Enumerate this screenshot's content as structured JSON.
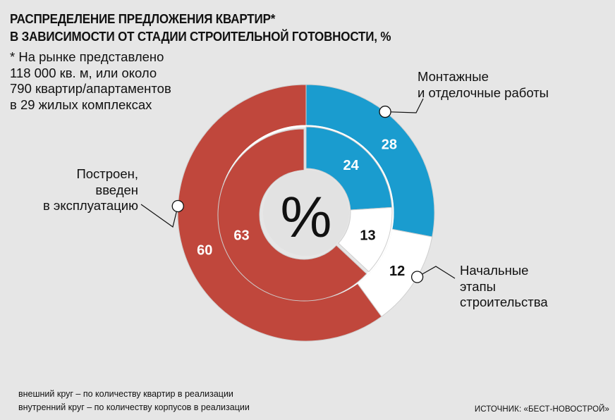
{
  "header": {
    "title_lines": [
      "РАСПРЕДЕЛЕНИЕ ПРЕДЛОЖЕНИЯ КВАРТИР*",
      "В ЗАВИСИМОСТИ ОТ СТАДИИ СТРОИТЕЛЬНОЙ ГОТОВНОСТИ, %"
    ],
    "note_lines": [
      "* На рынке представлено",
      "118 000 кв. м, или около",
      "790 квартир/апартаментов",
      "в 29 жилых комплексах"
    ]
  },
  "chart_data": {
    "type": "pie",
    "subtype": "double-donut",
    "center_label": "%",
    "categories": [
      "Монтажные и отделочные работы",
      "Начальные этапы строительства",
      "Построен, введен в эксплуатацию"
    ],
    "series": [
      {
        "ring": "outer",
        "values": [
          28,
          12,
          60
        ]
      },
      {
        "ring": "inner",
        "values": [
          24,
          13,
          63
        ]
      }
    ],
    "colors": [
      "#1a9ccf",
      "#ffffff",
      "#c0473c"
    ],
    "label_colors": [
      "#ffffff",
      "#111111",
      "#ffffff"
    ]
  },
  "labels": {
    "left": [
      "Построен,",
      "введен",
      "в эксплуатацию"
    ],
    "top_right": [
      "Монтажные",
      "и отделочные работы"
    ],
    "bottom_right": [
      "Начальные",
      "этапы",
      "строительства"
    ]
  },
  "legend": {
    "outer": "внешний круг – по количеству квартир в реализации",
    "inner": "внутренний круг – по количеству корпусов в реализации"
  },
  "source": "ИСТОЧНИК: «БЕСТ-НОВОСТРОЙ»"
}
